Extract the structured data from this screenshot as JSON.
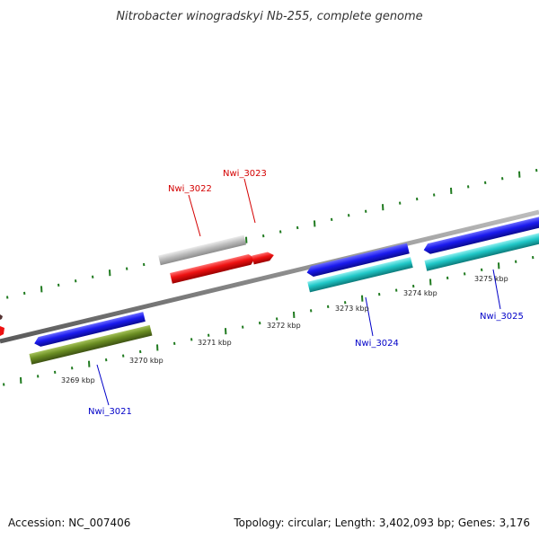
{
  "title": "Nitrobacter winogradskyi Nb-255, complete genome",
  "footer": {
    "accession": "Accession: NC_007406",
    "summary": "Topology: circular; Length: 3,402,093 bp; Genes: 3,176"
  },
  "colors": {
    "backbone": "#8a8a8a",
    "tick": "#1f7a1f",
    "label_forward": "#d40000",
    "label_reverse": "#0000c8",
    "gene_blue": "#1a1aee",
    "gene_cyan": "#20c8c8",
    "gene_olive": "#6b8e23",
    "gene_red": "#ee1111",
    "gene_gray": "#bdbdbd"
  },
  "scale_labels": [
    "3269 kbp",
    "3270 kbp",
    "3271 kbp",
    "3272 kbp",
    "3273 kbp",
    "3274 kbp",
    "3275 kbp"
  ],
  "gene_labels": {
    "nwi_3021": "Nwi_3021",
    "nwi_3022": "Nwi_3022",
    "nwi_3023": "Nwi_3023",
    "nwi_3024": "Nwi_3024",
    "nwi_3025": "Nwi_3025"
  },
  "features": [
    {
      "id": "gene-left-blue",
      "strand": "reverse",
      "color": "gene_blue"
    },
    {
      "id": "gene-left-olive",
      "strand": "reverse",
      "color": "gene_olive"
    },
    {
      "id": "gene-mid-gray",
      "strand": "forward",
      "color": "gene_gray"
    },
    {
      "id": "gene-mid-red",
      "strand": "forward",
      "color": "gene_red"
    },
    {
      "id": "gene-small-red",
      "strand": "forward",
      "color": "gene_red"
    },
    {
      "id": "gene-right-blue-1",
      "strand": "reverse",
      "color": "gene_blue"
    },
    {
      "id": "gene-right-cyan-1",
      "strand": "reverse",
      "color": "gene_cyan"
    },
    {
      "id": "gene-right-blue-2",
      "strand": "reverse",
      "color": "gene_blue"
    },
    {
      "id": "gene-right-cyan-2",
      "strand": "reverse",
      "color": "gene_cyan"
    }
  ]
}
